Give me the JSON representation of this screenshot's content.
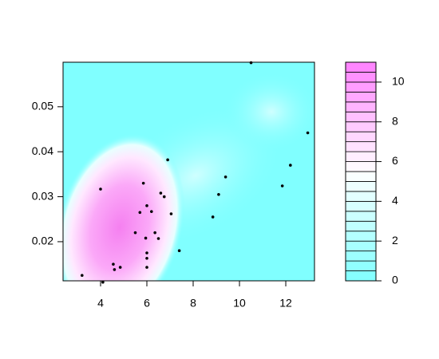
{
  "chart_data": {
    "type": "contour-scatter",
    "xlim": [
      2.38,
      13.24
    ],
    "xticks": [
      4,
      6,
      8,
      10,
      12
    ],
    "ylim": [
      0.0113,
      0.0599
    ],
    "yticks": [
      0.02,
      0.03,
      0.04,
      0.05
    ],
    "x": [
      3.2,
      4.0,
      4.1,
      4.55,
      4.6,
      4.85,
      5.5,
      5.7,
      5.85,
      5.95,
      6.0,
      6.0,
      6.0,
      6.0,
      6.2,
      6.35,
      6.5,
      6.6,
      6.75,
      6.9,
      7.05,
      7.4,
      8.85,
      9.1,
      9.4,
      10.5,
      11.85,
      12.2,
      12.95
    ],
    "y": [
      0.0125,
      0.0317,
      0.011,
      0.015,
      0.0138,
      0.0143,
      0.022,
      0.0265,
      0.033,
      0.0208,
      0.028,
      0.0175,
      0.0163,
      0.0143,
      0.0267,
      0.022,
      0.0207,
      0.0308,
      0.03,
      0.0382,
      0.0262,
      0.018,
      0.0255,
      0.0305,
      0.0344,
      0.0598,
      0.0324,
      0.037,
      0.0442
    ],
    "point_color": "#000000",
    "zlim": [
      0,
      11
    ],
    "zticks": [
      0,
      2,
      4,
      6,
      8,
      10
    ],
    "levels": [
      0,
      0.5,
      1,
      1.5,
      2,
      2.5,
      3,
      3.5,
      4,
      4.5,
      5,
      5.5,
      6,
      6.5,
      7,
      7.5,
      8,
      8.5,
      9,
      9.5,
      10,
      10.5,
      11
    ],
    "colors": [
      "#80FFFF",
      "#FFFFFF",
      "#FF80FF"
    ]
  }
}
